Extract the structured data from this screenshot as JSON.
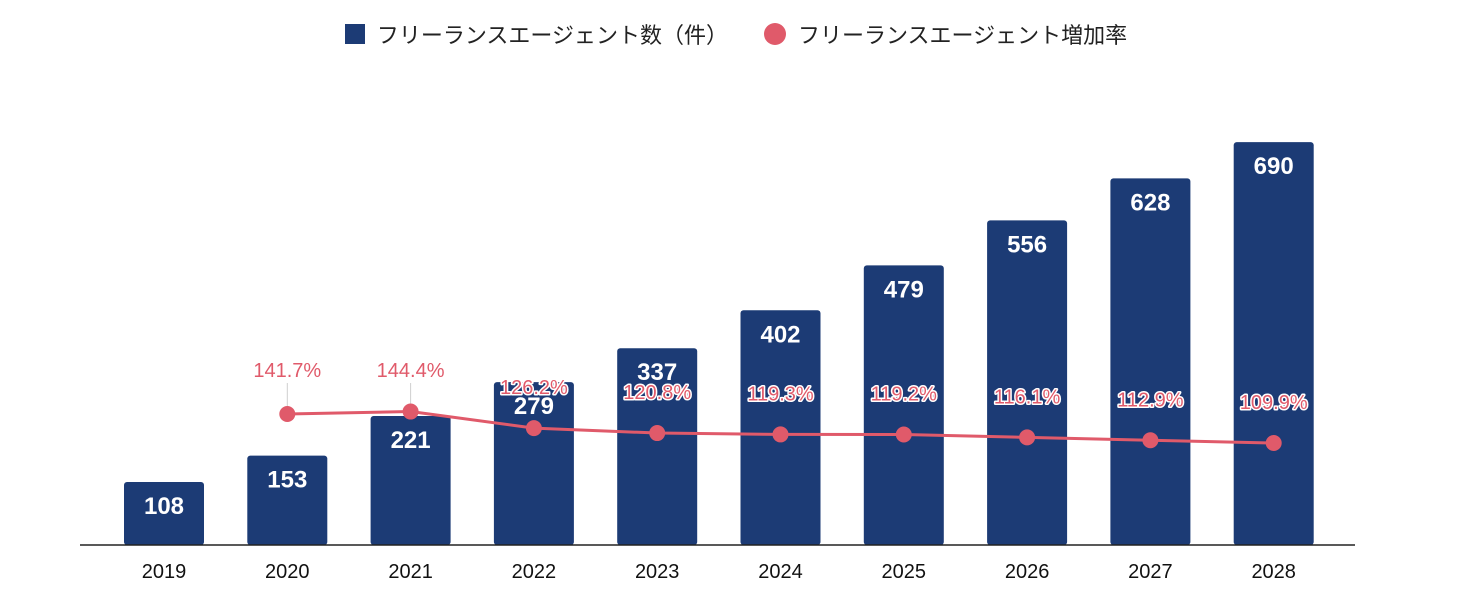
{
  "chart_data": {
    "type": "bar",
    "categories": [
      "2019",
      "2020",
      "2021",
      "2022",
      "2023",
      "2024",
      "2025",
      "2026",
      "2027",
      "2028"
    ],
    "series": [
      {
        "name": "フリーランスエージェント数（件）",
        "type": "bar",
        "values": [
          108,
          153,
          221,
          279,
          337,
          402,
          479,
          556,
          628,
          690
        ],
        "color": "#1c3b75"
      },
      {
        "name": "フリーランスエージェント増加率",
        "type": "line",
        "values": [
          null,
          141.7,
          144.4,
          126.2,
          120.8,
          119.3,
          119.2,
          116.1,
          112.9,
          109.9
        ],
        "labels": [
          "",
          "141.7%",
          "144.4%",
          "126.2%",
          "120.8%",
          "119.3%",
          "119.2%",
          "116.1%",
          "112.9%",
          "109.9%"
        ],
        "color": "#e05a6a"
      }
    ],
    "ylim": [
      0,
      745
    ],
    "legend_position": "top-center",
    "grid": false
  }
}
